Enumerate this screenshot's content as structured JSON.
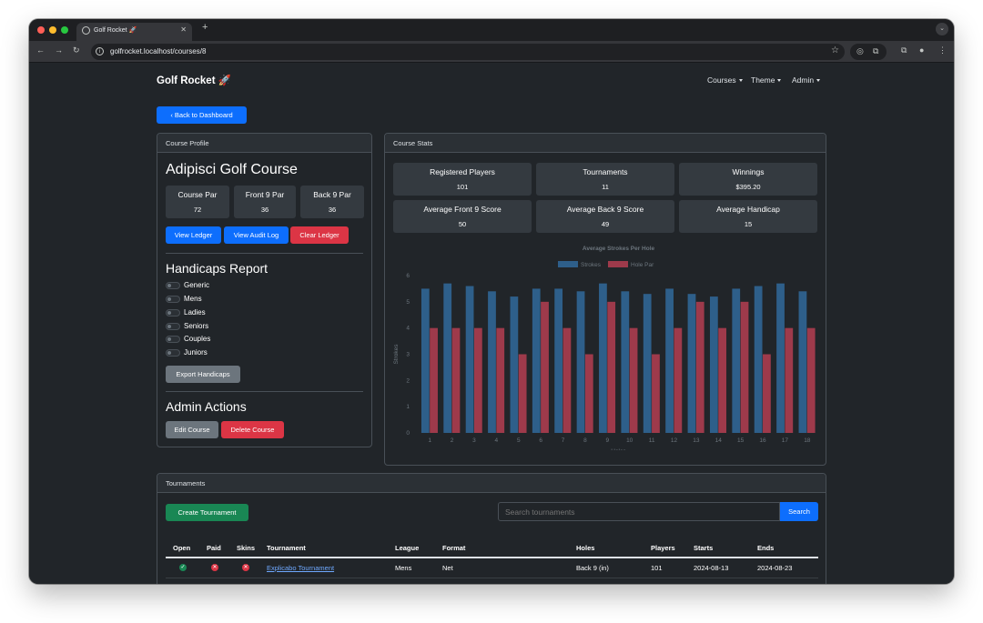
{
  "browser": {
    "tab_title": "Golf Rocket 🚀",
    "url": "golfrocket.localhost/courses/8"
  },
  "navbar": {
    "brand": "Golf Rocket 🚀",
    "items": [
      "Courses",
      "Theme",
      "Admin"
    ]
  },
  "back_button": "‹ Back to Dashboard",
  "course_profile": {
    "header": "Course Profile",
    "name": "Adipisci Golf Course",
    "stats": [
      {
        "label": "Course Par",
        "value": "72"
      },
      {
        "label": "Front 9 Par",
        "value": "36"
      },
      {
        "label": "Back 9 Par",
        "value": "36"
      }
    ],
    "buttons": {
      "view_ledger": "View Ledger",
      "view_audit_log": "View Audit Log",
      "clear_ledger": "Clear Ledger"
    },
    "handicaps_title": "Handicaps Report",
    "handicap_options": [
      "Generic",
      "Mens",
      "Ladies",
      "Seniors",
      "Couples",
      "Juniors"
    ],
    "export_button": "Export Handicaps",
    "admin_title": "Admin Actions",
    "edit_button": "Edit Course",
    "delete_button": "Delete Course"
  },
  "course_stats": {
    "header": "Course Stats",
    "tiles": [
      {
        "label": "Registered Players",
        "value": "101"
      },
      {
        "label": "Tournaments",
        "value": "11"
      },
      {
        "label": "Winnings",
        "value": "$395.20"
      },
      {
        "label": "Average Front 9 Score",
        "value": "50"
      },
      {
        "label": "Average Back 9 Score",
        "value": "49"
      },
      {
        "label": "Average Handicap",
        "value": "15"
      }
    ]
  },
  "chart_data": {
    "type": "bar",
    "title": "Average Strokes Per Hole",
    "xlabel": "Holes",
    "ylabel": "Strokes",
    "categories": [
      "1",
      "2",
      "3",
      "4",
      "5",
      "6",
      "7",
      "8",
      "9",
      "10",
      "11",
      "12",
      "13",
      "14",
      "15",
      "16",
      "17",
      "18"
    ],
    "series": [
      {
        "name": "Strokes",
        "color": "#2e5f8a",
        "values": [
          5.5,
          5.7,
          5.6,
          5.4,
          5.2,
          5.5,
          5.5,
          5.4,
          5.7,
          5.4,
          5.3,
          5.5,
          5.3,
          5.2,
          5.5,
          5.6,
          5.7,
          5.4
        ]
      },
      {
        "name": "Hole Par",
        "color": "#9e3a4b",
        "values": [
          4,
          4,
          4,
          4,
          3,
          5,
          4,
          3,
          5,
          4,
          3,
          4,
          5,
          4,
          5,
          3,
          4,
          4
        ]
      }
    ],
    "ylim": [
      0,
      6
    ],
    "yticks": [
      "0",
      "1",
      "2",
      "3",
      "4",
      "5",
      "6"
    ],
    "legend_position": "top-center"
  },
  "tournaments": {
    "header": "Tournaments",
    "create_button": "Create Tournament",
    "search_placeholder": "Search tournaments",
    "search_button": "Search",
    "columns": [
      "Open",
      "Paid",
      "Skins",
      "Tournament",
      "League",
      "Format",
      "Holes",
      "Players",
      "Starts",
      "Ends"
    ],
    "rows": [
      {
        "open": true,
        "paid": false,
        "skins": false,
        "name": "Explicabo Tournament",
        "league": "Mens",
        "format": "Net",
        "holes": "Back 9 (in)",
        "players": "101",
        "starts": "2024-08-13",
        "ends": "2024-08-23"
      }
    ]
  }
}
